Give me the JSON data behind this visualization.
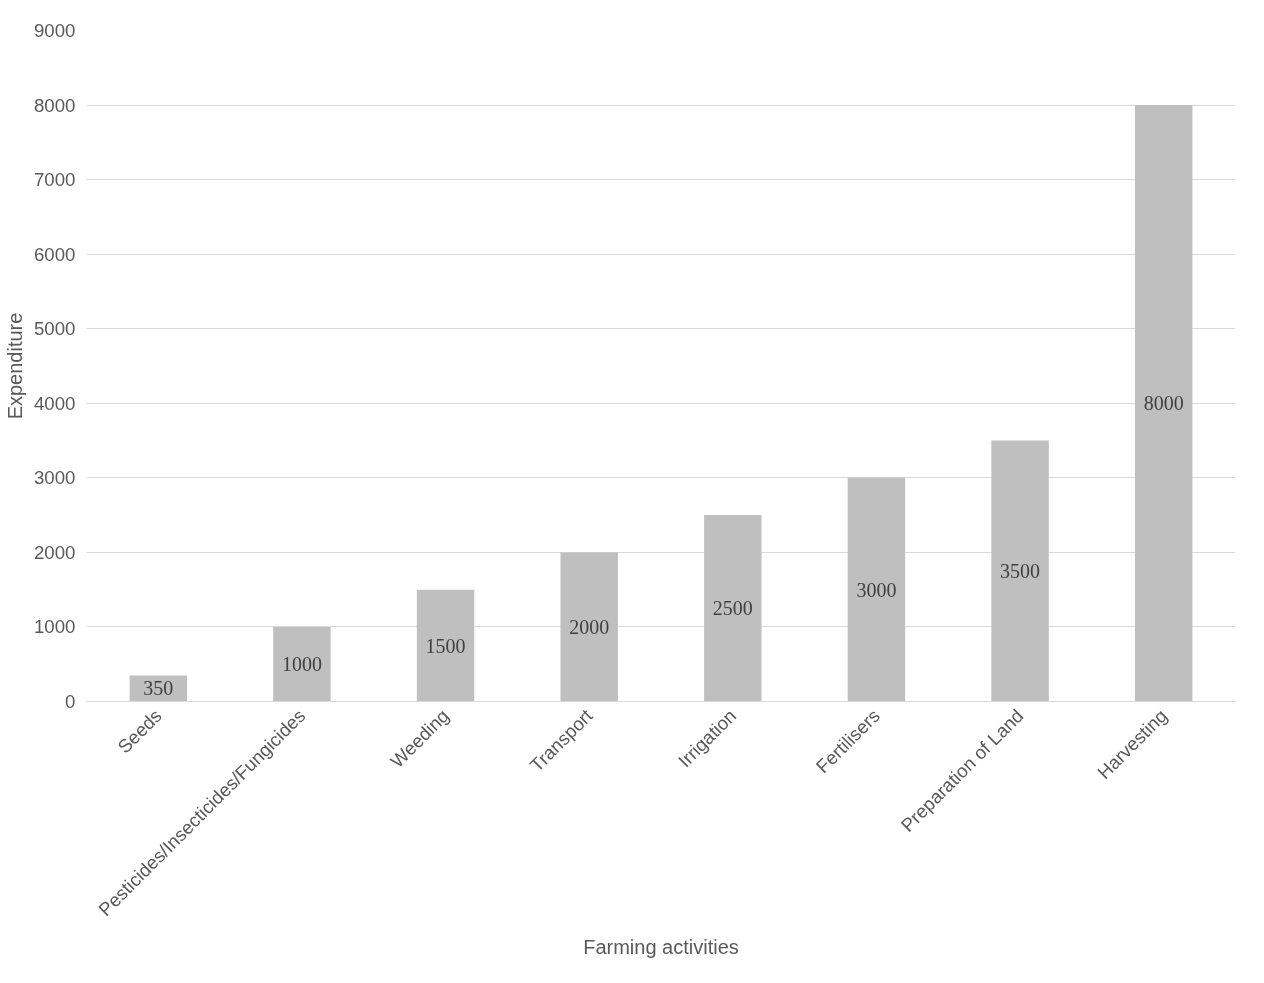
{
  "chart_data": {
    "type": "bar",
    "xlabel": "Farming activities",
    "ylabel": "Expenditure",
    "categories": [
      "Seeds",
      "Pesticides/Insecticides/Fungicides",
      "Weeding",
      "Transport",
      "Irrigation",
      "Fertilisers",
      "Preparation of Land",
      "Harvesting"
    ],
    "values": [
      350,
      1000,
      1500,
      2000,
      2500,
      3000,
      3500,
      8000
    ],
    "color": "#bfbfbf",
    "ylim": [
      0,
      9000
    ],
    "yticks": [
      0,
      1000,
      2000,
      3000,
      4000,
      5000,
      6000,
      7000,
      8000,
      9000
    ],
    "grid": "y",
    "data_labels": true
  }
}
